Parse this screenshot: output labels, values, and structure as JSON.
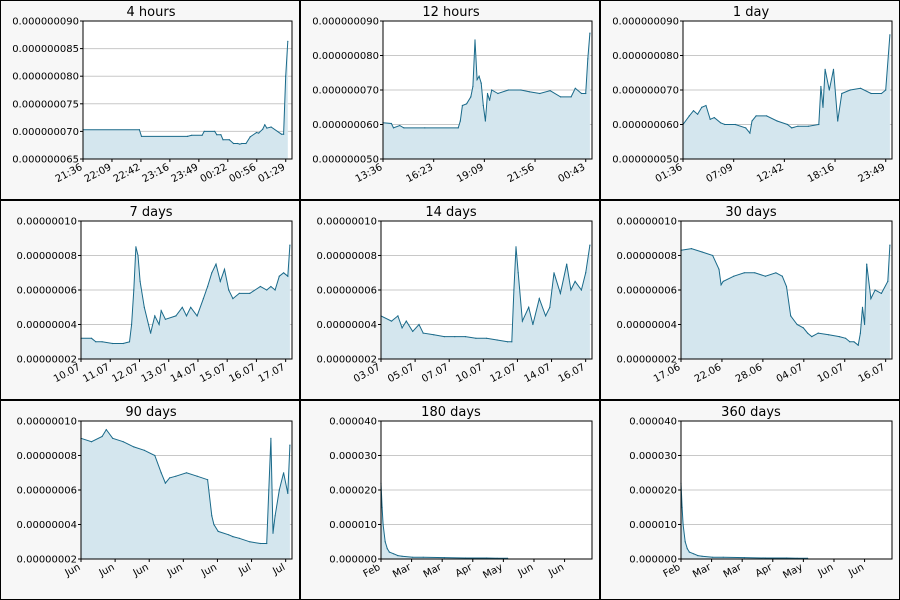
{
  "colors": {
    "line": "#1a6a8a",
    "fill": "#d4e6ee",
    "grid": "#c8c8c8",
    "background": "#f7f7f7",
    "plot": "#ffffff"
  },
  "chart_data": [
    {
      "type": "area",
      "title": "4 hours",
      "ylim": [
        6.5e-08,
        9e-08
      ],
      "yticks": [
        "0.000000065",
        "0.000000070",
        "0.000000075",
        "0.000000080",
        "0.000000085",
        "0.000000090"
      ],
      "xticks": [
        "21:36",
        "22:09",
        "22:42",
        "23:16",
        "23:49",
        "00:22",
        "00:56",
        "01:29"
      ],
      "x_range": [
        0,
        1
      ],
      "grid": true,
      "x": [
        0,
        0.27,
        0.28,
        0.5,
        0.52,
        0.57,
        0.58,
        0.63,
        0.64,
        0.66,
        0.67,
        0.7,
        0.72,
        0.74,
        0.75,
        0.76,
        0.78,
        0.8,
        0.83,
        0.84,
        0.86,
        0.87,
        0.88,
        0.9,
        0.95,
        0.96,
        0.97,
        0.98
      ],
      "values": [
        7.03e-08,
        7.03e-08,
        6.91e-08,
        6.91e-08,
        6.93e-08,
        6.93e-08,
        7e-08,
        7e-08,
        6.94e-08,
        6.94e-08,
        6.85e-08,
        6.85e-08,
        6.78e-08,
        6.78e-08,
        6.77e-08,
        6.78e-08,
        6.78e-08,
        6.9e-08,
        6.98e-08,
        6.97e-08,
        7.04e-08,
        7.12e-08,
        7.06e-08,
        7.08e-08,
        6.95e-08,
        6.95e-08,
        8e-08,
        8.63e-08
      ]
    },
    {
      "type": "area",
      "title": "12 hours",
      "ylim": [
        5e-08,
        9e-08
      ],
      "yticks": [
        "0.000000050",
        "0.000000060",
        "0.000000070",
        "0.000000080",
        "0.000000090"
      ],
      "xticks": [
        "13:36",
        "16:23",
        "19:09",
        "21:56",
        "00:43"
      ],
      "x_range": [
        0,
        1
      ],
      "grid": true,
      "x": [
        0,
        0.04,
        0.05,
        0.08,
        0.1,
        0.2,
        0.36,
        0.37,
        0.38,
        0.4,
        0.42,
        0.43,
        0.44,
        0.45,
        0.46,
        0.47,
        0.48,
        0.49,
        0.5,
        0.51,
        0.52,
        0.55,
        0.6,
        0.66,
        0.7,
        0.75,
        0.8,
        0.85,
        0.9,
        0.92,
        0.95,
        0.97,
        0.98,
        0.99
      ],
      "values": [
        6.05e-08,
        6.03e-08,
        5.9e-08,
        5.97e-08,
        5.9e-08,
        5.9e-08,
        5.9e-08,
        6.1e-08,
        6.55e-08,
        6.6e-08,
        6.8e-08,
        7.1e-08,
        8.45e-08,
        7.3e-08,
        7.4e-08,
        7.2e-08,
        6.55e-08,
        6.1e-08,
        6.9e-08,
        6.7e-08,
        7e-08,
        6.9e-08,
        7e-08,
        7e-08,
        6.95e-08,
        6.9e-08,
        6.98e-08,
        6.8e-08,
        6.8e-08,
        7.05e-08,
        6.9e-08,
        6.9e-08,
        7.9e-08,
        8.65e-08
      ]
    },
    {
      "type": "area",
      "title": "1 day",
      "ylim": [
        5e-08,
        9e-08
      ],
      "yticks": [
        "0.000000050",
        "0.000000060",
        "0.000000070",
        "0.000000080",
        "0.000000090"
      ],
      "xticks": [
        "01:36",
        "07:09",
        "12:42",
        "18:16",
        "23:49"
      ],
      "x_range": [
        0,
        1
      ],
      "grid": true,
      "x": [
        0,
        0.03,
        0.05,
        0.07,
        0.09,
        0.11,
        0.13,
        0.15,
        0.18,
        0.2,
        0.25,
        0.3,
        0.32,
        0.33,
        0.35,
        0.4,
        0.45,
        0.5,
        0.52,
        0.55,
        0.6,
        0.65,
        0.66,
        0.67,
        0.68,
        0.7,
        0.72,
        0.74,
        0.76,
        0.8,
        0.85,
        0.9,
        0.95,
        0.97,
        0.99
      ],
      "values": [
        6e-08,
        6.25e-08,
        6.4e-08,
        6.3e-08,
        6.5e-08,
        6.55e-08,
        6.15e-08,
        6.2e-08,
        6.05e-08,
        6e-08,
        6e-08,
        5.9e-08,
        5.75e-08,
        6.1e-08,
        6.25e-08,
        6.25e-08,
        6.1e-08,
        6e-08,
        5.9e-08,
        5.95e-08,
        5.95e-08,
        6e-08,
        7.1e-08,
        6.5e-08,
        7.6e-08,
        7e-08,
        7.6e-08,
        6.1e-08,
        6.9e-08,
        7e-08,
        7.05e-08,
        6.9e-08,
        6.9e-08,
        7e-08,
        8.6e-08
      ]
    },
    {
      "type": "area",
      "title": "7 days",
      "ylim": [
        2e-08,
        1e-07
      ],
      "yticks": [
        "0.00000002",
        "0.00000004",
        "0.00000006",
        "0.00000008",
        "0.00000010"
      ],
      "xticks": [
        "10.07",
        "11.07",
        "12.07",
        "13.07",
        "14.07",
        "15.07",
        "16.07",
        "17.07"
      ],
      "x_range": [
        0,
        1
      ],
      "grid": true,
      "x": [
        0,
        0.05,
        0.07,
        0.1,
        0.15,
        0.2,
        0.23,
        0.24,
        0.25,
        0.26,
        0.27,
        0.28,
        0.3,
        0.32,
        0.33,
        0.35,
        0.37,
        0.38,
        0.4,
        0.45,
        0.48,
        0.5,
        0.52,
        0.55,
        0.58,
        0.6,
        0.62,
        0.64,
        0.66,
        0.68,
        0.7,
        0.72,
        0.75,
        0.8,
        0.85,
        0.88,
        0.9,
        0.92,
        0.94,
        0.96,
        0.98,
        0.99
      ],
      "values": [
        3.2e-08,
        3.2e-08,
        3e-08,
        3e-08,
        2.9e-08,
        2.9e-08,
        3e-08,
        4e-08,
        6e-08,
        8.5e-08,
        8e-08,
        6.5e-08,
        5e-08,
        4e-08,
        3.5e-08,
        4.5e-08,
        4e-08,
        4.8e-08,
        4.3e-08,
        4.5e-08,
        5e-08,
        4.5e-08,
        5e-08,
        4.5e-08,
        5.5e-08,
        6.2e-08,
        7e-08,
        7.5e-08,
        6.5e-08,
        7.2e-08,
        6e-08,
        5.5e-08,
        5.8e-08,
        5.8e-08,
        6.2e-08,
        6e-08,
        6.2e-08,
        6e-08,
        6.8e-08,
        7e-08,
        6.8e-08,
        8.6e-08
      ]
    },
    {
      "type": "area",
      "title": "14 days",
      "ylim": [
        2e-08,
        1e-07
      ],
      "yticks": [
        "0.00000002",
        "0.00000004",
        "0.00000006",
        "0.00000008",
        "0.00000010"
      ],
      "xticks": [
        "03.07",
        "05.07",
        "07.07",
        "10.07",
        "12.07",
        "14.07",
        "16.07"
      ],
      "x_range": [
        0,
        1
      ],
      "grid": true,
      "x": [
        0,
        0.05,
        0.08,
        0.1,
        0.12,
        0.15,
        0.18,
        0.2,
        0.25,
        0.3,
        0.35,
        0.4,
        0.45,
        0.5,
        0.55,
        0.6,
        0.62,
        0.63,
        0.64,
        0.65,
        0.67,
        0.7,
        0.72,
        0.75,
        0.78,
        0.8,
        0.82,
        0.85,
        0.88,
        0.9,
        0.92,
        0.95,
        0.97,
        0.99
      ],
      "values": [
        4.5e-08,
        4.2e-08,
        4.5e-08,
        3.8e-08,
        4.2e-08,
        3.6e-08,
        4e-08,
        3.5e-08,
        3.4e-08,
        3.3e-08,
        3.3e-08,
        3.3e-08,
        3.2e-08,
        3.2e-08,
        3.1e-08,
        3e-08,
        3e-08,
        6e-08,
        8.5e-08,
        7e-08,
        4.2e-08,
        5e-08,
        4e-08,
        5.5e-08,
        4.5e-08,
        5e-08,
        7e-08,
        5.8e-08,
        7.5e-08,
        6e-08,
        6.5e-08,
        6e-08,
        7e-08,
        8.6e-08
      ]
    },
    {
      "type": "area",
      "title": "30 days",
      "ylim": [
        2e-08,
        1e-07
      ],
      "yticks": [
        "0.00000002",
        "0.00000004",
        "0.00000006",
        "0.00000008",
        "0.00000010"
      ],
      "xticks": [
        "17.06",
        "22.06",
        "28.06",
        "04.07",
        "10.07",
        "16.07"
      ],
      "x_range": [
        0,
        1
      ],
      "grid": true,
      "x": [
        0,
        0.05,
        0.1,
        0.15,
        0.18,
        0.19,
        0.2,
        0.25,
        0.3,
        0.35,
        0.4,
        0.45,
        0.48,
        0.5,
        0.52,
        0.55,
        0.58,
        0.6,
        0.62,
        0.65,
        0.7,
        0.75,
        0.78,
        0.8,
        0.82,
        0.84,
        0.85,
        0.86,
        0.87,
        0.88,
        0.9,
        0.92,
        0.95,
        0.98,
        0.99
      ],
      "values": [
        8.3e-08,
        8.4e-08,
        8.2e-08,
        8e-08,
        7.2e-08,
        6.3e-08,
        6.5e-08,
        6.8e-08,
        7e-08,
        7e-08,
        6.8e-08,
        7e-08,
        6.8e-08,
        6.2e-08,
        4.5e-08,
        4e-08,
        3.8e-08,
        3.5e-08,
        3.3e-08,
        3.5e-08,
        3.4e-08,
        3.3e-08,
        3.2e-08,
        3e-08,
        3e-08,
        2.8e-08,
        3.5e-08,
        5e-08,
        4e-08,
        7.5e-08,
        5.5e-08,
        6e-08,
        5.8e-08,
        6.5e-08,
        8.6e-08
      ]
    },
    {
      "type": "area",
      "title": "90 days",
      "ylim": [
        2e-08,
        1e-07
      ],
      "yticks": [
        "0.00000002",
        "0.00000004",
        "0.00000006",
        "0.00000008",
        "0.00000010"
      ],
      "xticks": [
        "Jun",
        "Jun",
        "Jun",
        "Jun",
        "Jun",
        "Jul",
        "Jul"
      ],
      "x_range": [
        0,
        1
      ],
      "grid": true,
      "x": [
        0,
        0.05,
        0.1,
        0.12,
        0.15,
        0.2,
        0.25,
        0.3,
        0.35,
        0.38,
        0.4,
        0.42,
        0.45,
        0.5,
        0.55,
        0.6,
        0.62,
        0.63,
        0.65,
        0.7,
        0.72,
        0.75,
        0.8,
        0.85,
        0.88,
        0.89,
        0.9,
        0.91,
        0.92,
        0.94,
        0.96,
        0.98,
        0.99
      ],
      "values": [
        9e-08,
        8.8e-08,
        9.1e-08,
        9.5e-08,
        9e-08,
        8.8e-08,
        8.5e-08,
        8.3e-08,
        8e-08,
        7e-08,
        6.4e-08,
        6.7e-08,
        6.8e-08,
        7e-08,
        6.8e-08,
        6.6e-08,
        4.5e-08,
        4e-08,
        3.6e-08,
        3.4e-08,
        3.3e-08,
        3.2e-08,
        3e-08,
        2.9e-08,
        2.9e-08,
        6e-08,
        9e-08,
        3.5e-08,
        4.5e-08,
        6e-08,
        7e-08,
        5.8e-08,
        8.6e-08
      ]
    },
    {
      "type": "area",
      "title": "180 days",
      "ylim": [
        0,
        4e-05
      ],
      "yticks": [
        "0.000000",
        "0.000010",
        "0.000020",
        "0.000030",
        "0.000040"
      ],
      "xticks": [
        "Feb",
        "Mar",
        "Mar",
        "Apr",
        "May",
        "Jun",
        "Jun"
      ],
      "x_range": [
        0,
        1
      ],
      "grid": true,
      "x": [
        0,
        0.005,
        0.01,
        0.02,
        0.03,
        0.04,
        0.06,
        0.08,
        0.1,
        0.15,
        0.2,
        0.3,
        0.4,
        0.5,
        0.55,
        0.6
      ],
      "values": [
        2.2e-05,
        1.5e-05,
        1e-05,
        5e-06,
        3e-06,
        2e-06,
        1.5e-06,
        1e-06,
        8e-07,
        5e-07,
        5e-07,
        4e-07,
        3e-07,
        3e-07,
        2e-07,
        2e-07
      ]
    },
    {
      "type": "area",
      "title": "360 days",
      "ylim": [
        0,
        4e-05
      ],
      "yticks": [
        "0.000000",
        "0.000010",
        "0.000020",
        "0.000030",
        "0.000040"
      ],
      "xticks": [
        "Feb",
        "Mar",
        "Mar",
        "Apr",
        "May",
        "Jun",
        "Jun"
      ],
      "x_range": [
        0,
        1
      ],
      "grid": true,
      "x": [
        0,
        0.005,
        0.01,
        0.02,
        0.03,
        0.04,
        0.06,
        0.08,
        0.1,
        0.15,
        0.2,
        0.3,
        0.4,
        0.5,
        0.55,
        0.6
      ],
      "values": [
        2.2e-05,
        1.5e-05,
        1e-05,
        5e-06,
        3e-06,
        2e-06,
        1.5e-06,
        1e-06,
        8e-07,
        5e-07,
        5e-07,
        4e-07,
        3e-07,
        3e-07,
        2e-07,
        2e-07
      ]
    }
  ]
}
